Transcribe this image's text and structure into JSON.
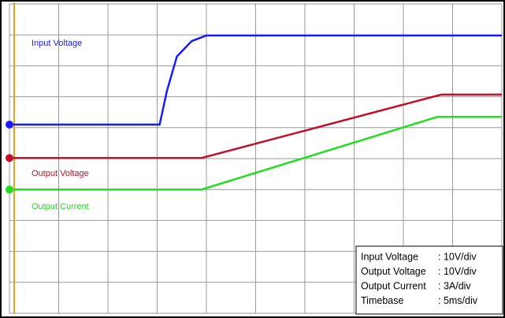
{
  "chart_data": {
    "type": "line",
    "xlim": [
      0,
      10
    ],
    "ylim": [
      0,
      10
    ],
    "xticks": [
      0,
      1,
      2,
      3,
      4,
      5,
      6,
      7,
      8,
      9,
      10
    ],
    "yticks": [
      0,
      1,
      2,
      3,
      4,
      5,
      6,
      7,
      8,
      9,
      10
    ],
    "grid": true,
    "series": [
      {
        "name": "Input Voltage",
        "color": "#1a1aff",
        "x": [
          0,
          3.05,
          3.2,
          3.4,
          3.7,
          4.0,
          10
        ],
        "values": [
          6.1,
          6.1,
          7.2,
          8.3,
          8.8,
          8.98,
          8.98
        ]
      },
      {
        "name": "Output Voltage",
        "color": "#c0102a",
        "x": [
          0,
          3.9,
          8.77,
          10
        ],
        "values": [
          5.02,
          5.02,
          7.07,
          7.07
        ]
      },
      {
        "name": "Output Current",
        "color": "#22dd22",
        "x": [
          0,
          3.9,
          8.69,
          10
        ],
        "values": [
          4.0,
          4.0,
          6.35,
          6.35
        ]
      }
    ],
    "settings": [
      {
        "label": "Input Voltage",
        "value": ": 10V/div"
      },
      {
        "label": "Output Voltage",
        "value": ": 10V/div"
      },
      {
        "label": "Output Current",
        "value": ": 3A/div"
      },
      {
        "label": "Timebase",
        "value": ": 5ms/div"
      }
    ]
  }
}
